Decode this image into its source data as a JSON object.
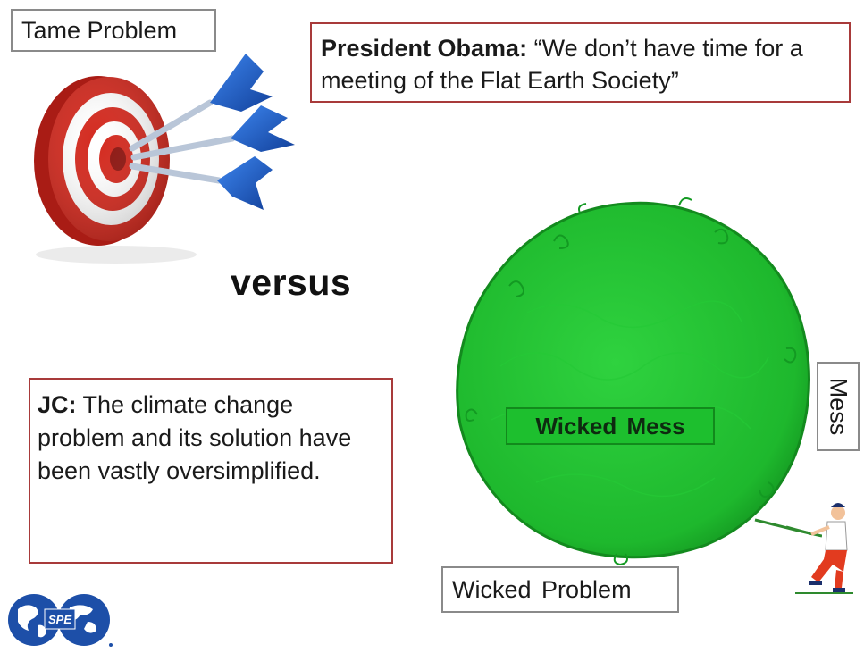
{
  "labels": {
    "tame_problem": "Tame Problem",
    "versus": "versus",
    "wicked_mess": "Wicked  Mess",
    "wicked_problem": "Wicked  Problem",
    "mess": "Mess",
    "spe_logo_text": "SPE"
  },
  "quote": {
    "speaker": "President Obama:",
    "text": "“We don’t have time for a meeting of the Flat Earth Society”"
  },
  "jc": {
    "speaker": "JC:",
    "text": "The climate change problem and its solution have been vastly oversimplified."
  },
  "colors": {
    "target_red": "#d42a1f",
    "dart_blue": "#1f5fc4",
    "mess_green": "#1ec02f",
    "box_border_red": "#a83a3a",
    "box_border_gray": "#8a8a8a",
    "logo_blue": "#1d4fa8"
  }
}
